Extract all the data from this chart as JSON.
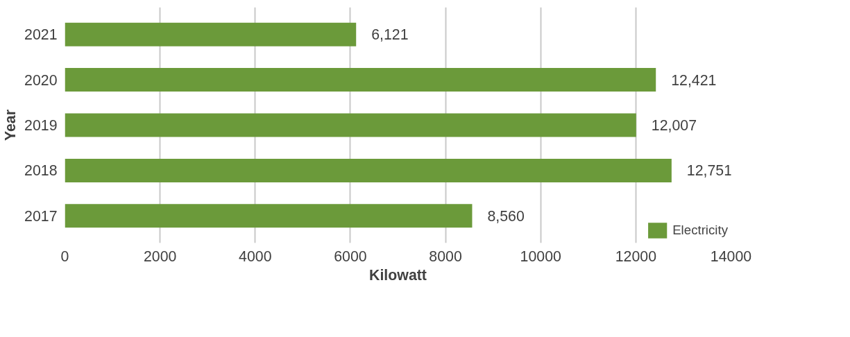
{
  "chart_data": {
    "type": "bar",
    "orientation": "horizontal",
    "xlabel": "Kilowatt",
    "ylabel": "Year",
    "categories": [
      "2021",
      "2020",
      "2019",
      "2018",
      "2017"
    ],
    "series": [
      {
        "name": "Electricity",
        "color": "#6b9a3a",
        "values": [
          6121,
          12421,
          12007,
          12751,
          8560
        ],
        "value_labels": [
          "6,121",
          "12,421",
          "12,007",
          "12,751",
          "8,560"
        ]
      }
    ],
    "xlim": [
      0,
      14000
    ],
    "xticks": [
      0,
      2000,
      4000,
      6000,
      8000,
      10000,
      12000,
      14000
    ],
    "grid": "x",
    "legend": "bottom right"
  }
}
